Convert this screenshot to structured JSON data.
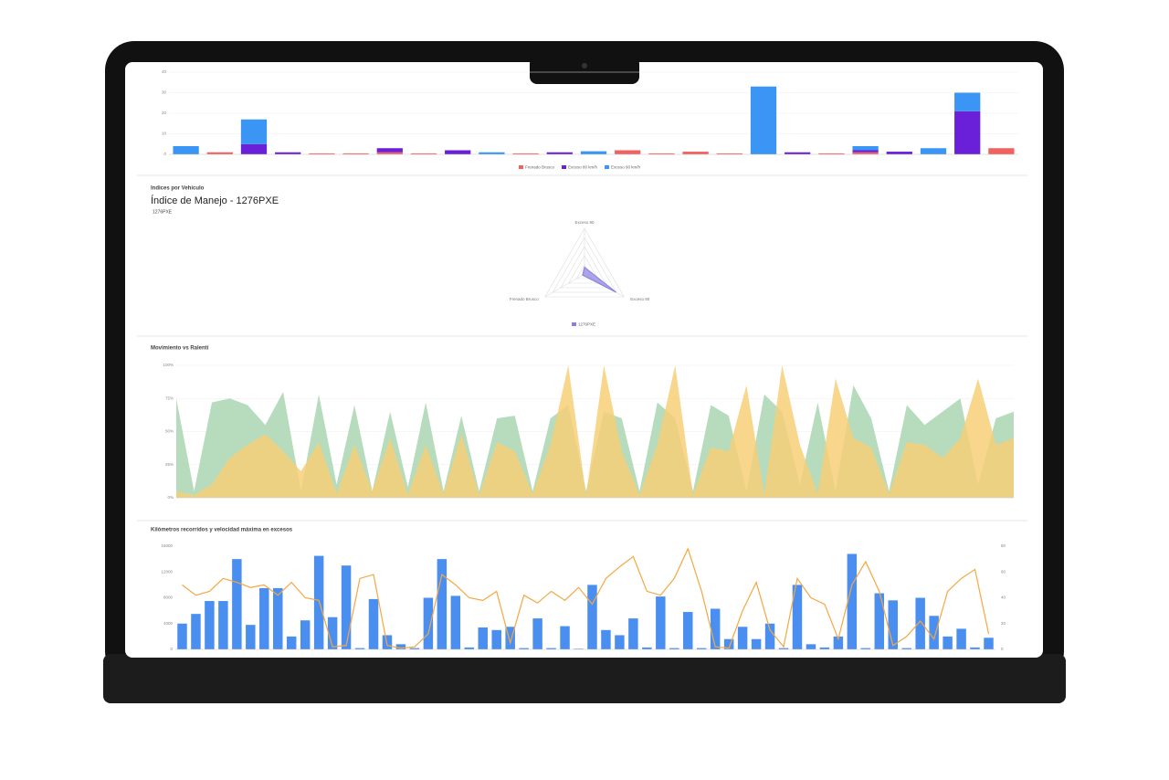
{
  "chart_data": [
    {
      "type": "stacked_bar",
      "ylim": [
        0,
        40
      ],
      "yticks": [
        0,
        10,
        20,
        30,
        40
      ],
      "grid": true,
      "series": [
        {
          "name": "Frenado Brusco",
          "color": "#f0625f",
          "values": [
            0,
            1,
            0,
            0,
            0.5,
            0.5,
            1,
            0.5,
            0,
            0,
            0.5,
            0,
            0,
            2,
            0.5,
            1.3,
            0.5,
            0,
            0,
            0.5,
            1,
            0,
            0,
            0,
            3
          ]
        },
        {
          "name": "Exceso 80 km/h",
          "color": "#6a1fd8",
          "values": [
            0,
            0,
            5,
            1,
            0,
            0,
            2,
            0,
            2,
            0,
            0,
            1,
            0,
            0,
            0,
            0,
            0,
            0,
            1,
            0,
            1,
            1.3,
            0,
            21,
            0
          ]
        },
        {
          "name": "Exceso 90 km/h",
          "color": "#3a95f5",
          "values": [
            4,
            0,
            12,
            0,
            0,
            0,
            0,
            0,
            0,
            1,
            0,
            0,
            1.5,
            0,
            0,
            0,
            0,
            33,
            0,
            0,
            2,
            0,
            3,
            9,
            0
          ]
        }
      ]
    },
    {
      "type": "radar",
      "title": "Indices por Vehículo",
      "subtitle": "Índice de Manejo - 1276PXE",
      "selector": "1276PXE",
      "axes": [
        "Exceso 90",
        "Exceso 80",
        "Frenado Brusco"
      ],
      "rlim": [
        0,
        100
      ],
      "rticks": [
        20,
        40,
        60,
        80,
        100
      ],
      "series": [
        {
          "name": "1276PXE",
          "color": "#8a7fe0",
          "values": [
            15,
            80,
            5
          ]
        }
      ]
    },
    {
      "type": "area",
      "title": "Movimiento vs Ralentí",
      "ylim": [
        0,
        100
      ],
      "yticks": [
        {
          "value": 0,
          "label": "0%"
        },
        {
          "value": 25,
          "label": "25%"
        },
        {
          "value": 50,
          "label": "50%"
        },
        {
          "value": 75,
          "label": "75%"
        },
        {
          "value": 100,
          "label": "100%"
        }
      ],
      "grid": true,
      "series": [
        {
          "color": "#a9d6b2",
          "values": [
            75,
            5,
            72,
            75,
            70,
            55,
            80,
            5,
            78,
            10,
            70,
            5,
            65,
            8,
            72,
            5,
            62,
            5,
            60,
            62,
            5,
            60,
            70,
            5,
            65,
            60,
            5,
            72,
            60,
            5,
            70,
            62,
            5,
            78,
            65,
            10,
            72,
            5,
            85,
            60,
            5,
            70,
            55,
            65,
            75,
            10,
            60,
            65
          ]
        },
        {
          "color": "#f7cf78",
          "values": [
            5,
            2,
            10,
            30,
            40,
            48,
            35,
            20,
            42,
            3,
            40,
            5,
            45,
            2,
            40,
            3,
            48,
            2,
            42,
            35,
            3,
            40,
            100,
            2,
            100,
            35,
            2,
            40,
            100,
            2,
            38,
            35,
            85,
            2,
            100,
            40,
            3,
            90,
            45,
            38,
            3,
            42,
            40,
            30,
            45,
            90,
            40,
            45
          ]
        }
      ]
    },
    {
      "type": "bar_line",
      "title": "Kilómetros recorridos y velocidad máxima en excesos",
      "ylim": [
        0,
        16000
      ],
      "yticks": [
        0,
        4000,
        8000,
        12000,
        16000
      ],
      "y2lim": [
        0,
        80
      ],
      "y2ticks": [
        0,
        20,
        40,
        60,
        80
      ],
      "series": [
        {
          "color": "#4a8ff0",
          "values": [
            4000,
            5500,
            7500,
            7500,
            14000,
            3800,
            9500,
            9500,
            2000,
            4500,
            14500,
            5000,
            13000,
            200,
            7800,
            2200,
            800,
            200,
            8000,
            14000,
            8300,
            300,
            3400,
            3000,
            3500,
            200,
            4800,
            200,
            3600,
            100,
            10000,
            3000,
            2200,
            4800,
            300,
            8200,
            200,
            5800,
            200,
            6300,
            1600,
            3500,
            1600,
            4000,
            200,
            10000,
            800,
            300,
            2000,
            14800,
            200,
            8700,
            7600,
            200,
            8000,
            5200,
            2000,
            3200,
            300,
            1800
          ]
        },
        {
          "color": "#f5a742",
          "axis": "y2",
          "values": [
            50,
            42,
            45,
            55,
            52,
            48,
            50,
            42,
            52,
            40,
            38,
            2,
            3,
            55,
            58,
            3,
            1,
            2,
            12,
            58,
            50,
            40,
            38,
            45,
            5,
            42,
            36,
            45,
            38,
            48,
            35,
            55,
            64,
            72,
            45,
            42,
            55,
            78,
            45,
            2,
            1,
            30,
            52,
            15,
            2,
            55,
            40,
            35,
            8,
            50,
            68,
            45,
            3,
            10,
            22,
            8,
            45,
            55,
            62,
            12
          ]
        }
      ]
    }
  ]
}
